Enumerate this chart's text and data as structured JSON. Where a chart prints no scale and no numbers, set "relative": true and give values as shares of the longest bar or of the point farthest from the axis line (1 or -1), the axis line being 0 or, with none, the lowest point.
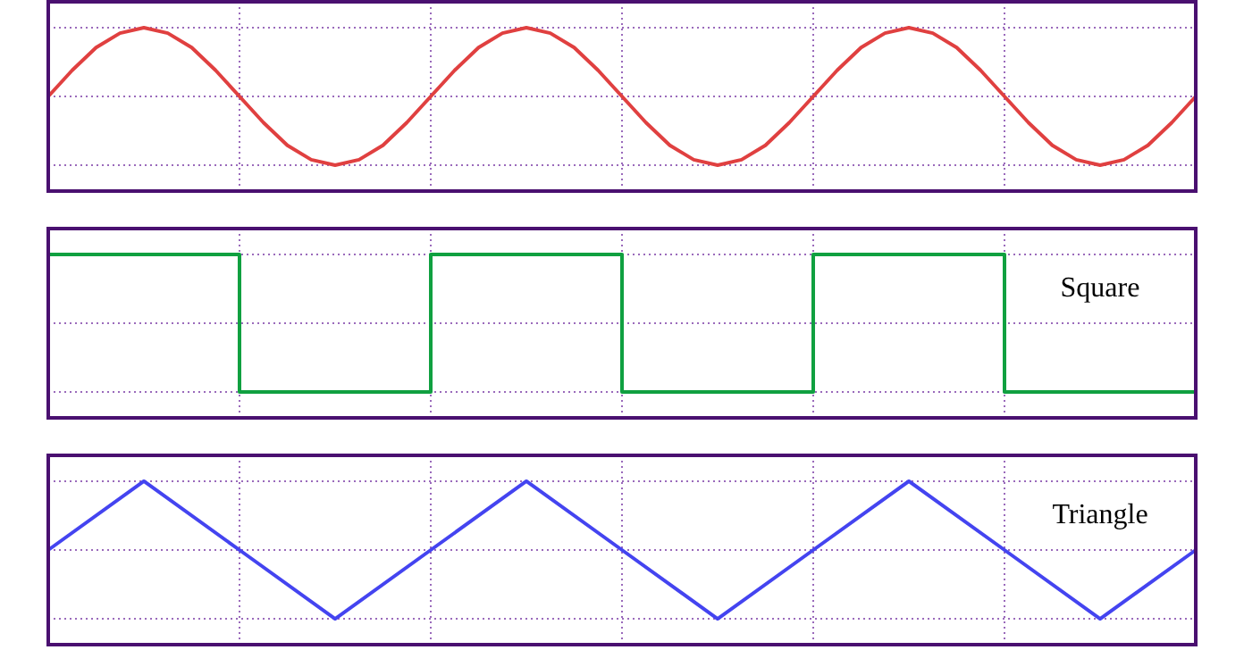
{
  "chart_data": [
    {
      "type": "line",
      "relative": true,
      "grid": true,
      "color": "#e04040",
      "categories": [
        null,
        null,
        null,
        null,
        null,
        null,
        null,
        null,
        null,
        null,
        null,
        null,
        null,
        null,
        null,
        null,
        null,
        null,
        null,
        null,
        null,
        null,
        null,
        null,
        null,
        null,
        null,
        null,
        null,
        null,
        null,
        null,
        null,
        null,
        null,
        null,
        null,
        null,
        null,
        null,
        null,
        null,
        null,
        null,
        null,
        null,
        null,
        null,
        null
      ],
      "values": [
        0,
        0.38,
        0.71,
        0.92,
        1,
        0.92,
        0.71,
        0.38,
        0,
        -0.38,
        -0.71,
        -0.92,
        -1,
        -0.92,
        -0.71,
        -0.38,
        0,
        0.38,
        0.71,
        0.92,
        1,
        0.92,
        0.71,
        0.38,
        0,
        -0.38,
        -0.71,
        -0.92,
        -1,
        -0.92,
        -0.71,
        -0.38,
        0,
        0.38,
        0.71,
        0.92,
        1,
        0.92,
        0.71,
        0.38,
        0,
        -0.38,
        -0.71,
        -0.92,
        -1,
        -0.92,
        -0.71,
        -0.38,
        0
      ]
    },
    {
      "type": "step",
      "relative": true,
      "grid": true,
      "color": "#10a040",
      "annotations": [
        "Square"
      ],
      "categories": [
        null,
        null,
        null,
        null,
        null,
        null,
        null
      ],
      "values": [
        1,
        -1,
        1,
        -1,
        1,
        -1,
        -1
      ]
    },
    {
      "type": "line",
      "relative": true,
      "grid": true,
      "color": "#4444f0",
      "annotations": [
        "Triangle"
      ],
      "categories": [
        null,
        null,
        null,
        null,
        null,
        null,
        null,
        null,
        null,
        null,
        null,
        null,
        null
      ],
      "values": [
        0,
        1,
        0,
        -1,
        0,
        1,
        0,
        -1,
        0,
        1,
        0,
        -1,
        0
      ]
    }
  ]
}
